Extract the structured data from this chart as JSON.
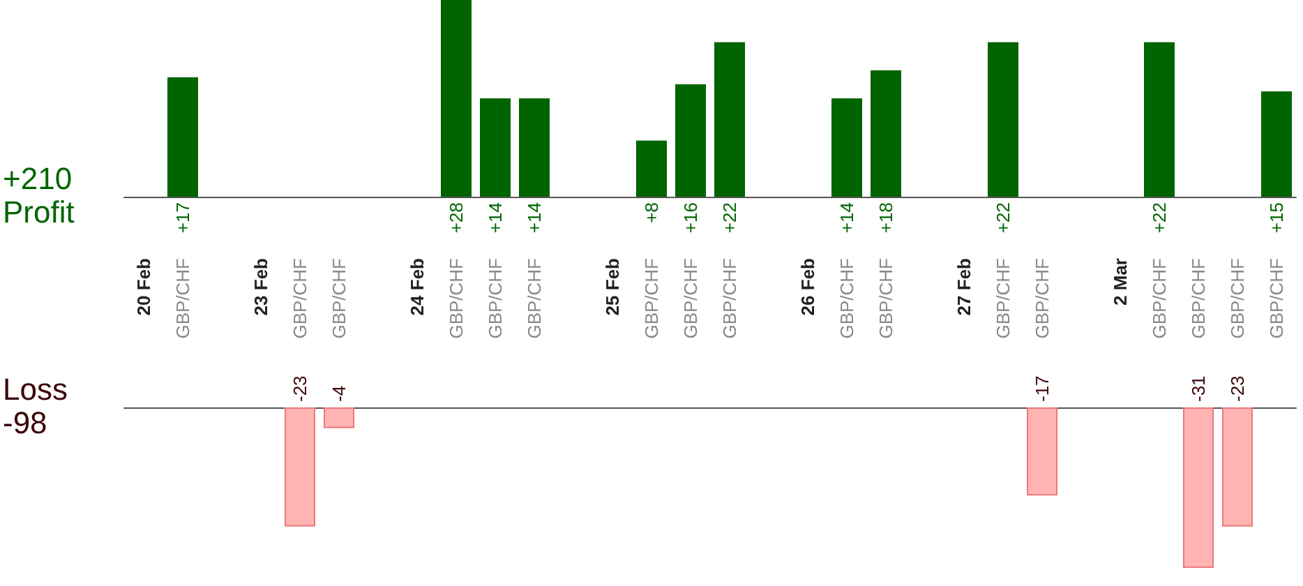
{
  "chart_data": [
    {
      "type": "bar",
      "categories": [
        "20 Feb",
        "GBP/CHF",
        null,
        "23 Feb",
        "GBP/CHF",
        "GBP/CHF",
        null,
        "24 Feb",
        "GBP/CHF",
        "GBP/CHF",
        "GBP/CHF",
        null,
        "25 Feb",
        "GBP/CHF",
        "GBP/CHF",
        "GBP/CHF",
        null,
        "26 Feb",
        "GBP/CHF",
        "GBP/CHF",
        null,
        "27 Feb",
        "GBP/CHF",
        "GBP/CHF",
        null,
        "2 Mar",
        "GBP/CHF",
        "GBP/CHF",
        "GBP/CHF",
        "GBP/CHF"
      ],
      "values": [
        null,
        17,
        null,
        null,
        null,
        null,
        null,
        null,
        28,
        14,
        14,
        null,
        null,
        8,
        16,
        22,
        null,
        null,
        14,
        18,
        null,
        null,
        22,
        null,
        null,
        null,
        22,
        null,
        null,
        15
      ],
      "value_labels": [
        null,
        "+17",
        null,
        null,
        null,
        null,
        null,
        null,
        "+28",
        "+14",
        "+14",
        null,
        null,
        "+8",
        "+16",
        "+22",
        null,
        null,
        "+14",
        "+18",
        null,
        null,
        "+22",
        null,
        null,
        null,
        "+22",
        null,
        null,
        "+15"
      ],
      "color": "#006400",
      "annotations": [
        "+210",
        "Profit"
      ],
      "tick_labels": "x"
    },
    {
      "type": "bar",
      "categories": [
        null,
        null,
        null,
        null,
        null,
        null,
        null,
        null,
        null,
        null,
        null,
        null,
        null,
        null,
        null,
        null,
        null,
        null,
        null,
        null,
        null,
        null,
        null,
        null,
        null,
        null,
        null,
        null,
        null,
        null
      ],
      "values": [
        null,
        null,
        null,
        null,
        -23,
        -4,
        null,
        null,
        null,
        null,
        null,
        null,
        null,
        null,
        null,
        null,
        null,
        null,
        null,
        null,
        null,
        null,
        null,
        -17,
        null,
        null,
        null,
        -31,
        -23,
        null
      ],
      "value_labels": [
        null,
        null,
        null,
        null,
        "-23",
        "-4",
        null,
        null,
        null,
        null,
        null,
        null,
        null,
        null,
        null,
        null,
        null,
        null,
        null,
        null,
        null,
        null,
        null,
        "-17",
        null,
        null,
        null,
        "-31",
        "-23",
        null
      ],
      "color": "#ffb3b3",
      "annotations": [
        "Loss",
        "-98"
      ],
      "tick_labels": false
    }
  ]
}
